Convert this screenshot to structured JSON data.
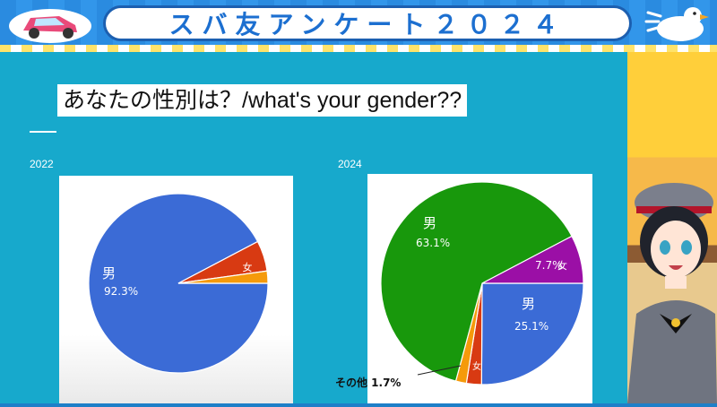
{
  "banner": {
    "title": "スバ友アンケート２０２４"
  },
  "slide": {
    "question": "あなたの性別は？/what's your gender??"
  },
  "chart_data": [
    {
      "type": "pie",
      "title": "2022",
      "slices": [
        {
          "label": "男",
          "value": 92.3,
          "value_label": "92.3%",
          "color": "#3b6bd6"
        },
        {
          "label": "女",
          "value": 5.5,
          "value_label": "",
          "color": "#d83a12"
        },
        {
          "label": "",
          "value": 2.2,
          "value_label": "",
          "color": "#f59a0b"
        }
      ]
    },
    {
      "type": "pie",
      "title": "2024",
      "slices": [
        {
          "label": "男",
          "value": 25.1,
          "value_label": "25.1%",
          "color": "#3b6bd6"
        },
        {
          "label": "女",
          "value": 2.4,
          "value_label": "",
          "color": "#d83a12"
        },
        {
          "label": "その他",
          "value": 1.7,
          "value_label": "1.7%",
          "color": "#f59a0b"
        },
        {
          "label": "男",
          "value": 63.1,
          "value_label": "63.1%",
          "color": "#18980c"
        },
        {
          "label": "女",
          "value": 7.7,
          "value_label": "7.7%",
          "color": "#9b0fa6"
        }
      ]
    }
  ]
}
